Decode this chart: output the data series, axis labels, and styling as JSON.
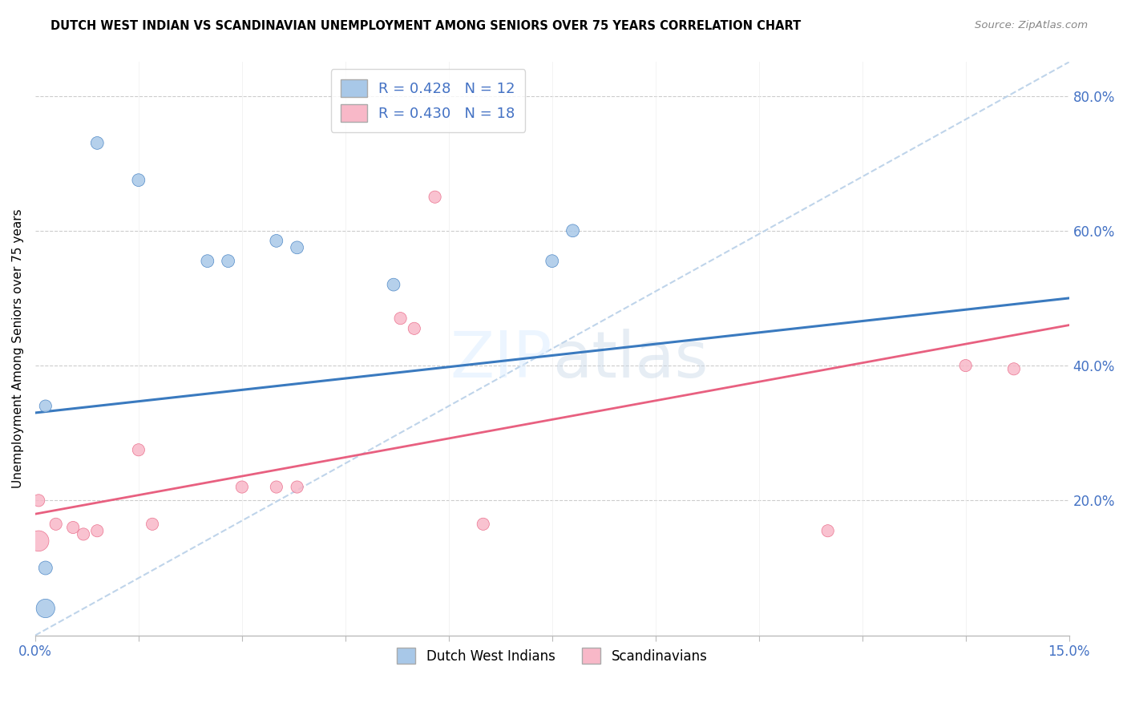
{
  "title": "DUTCH WEST INDIAN VS SCANDINAVIAN UNEMPLOYMENT AMONG SENIORS OVER 75 YEARS CORRELATION CHART",
  "source": "Source: ZipAtlas.com",
  "ylabel": "Unemployment Among Seniors over 75 years",
  "xlim": [
    0.0,
    15.0
  ],
  "ylim": [
    0.0,
    85.0
  ],
  "yticks_right": [
    20.0,
    40.0,
    60.0,
    80.0
  ],
  "legend_label1": "Dutch West Indians",
  "legend_label2": "Scandinavians",
  "R1": 0.428,
  "N1": 12,
  "R2": 0.43,
  "N2": 18,
  "color_blue": "#a8c8e8",
  "color_blue_line": "#3a7abf",
  "color_pink": "#f8b8c8",
  "color_pink_line": "#e86080",
  "color_diag": "#b8d0e8",
  "blue_x": [
    0.15,
    0.15,
    0.9,
    1.5,
    2.5,
    2.8,
    3.5,
    3.8,
    5.2,
    7.5,
    7.8,
    0.15
  ],
  "blue_y": [
    10.0,
    34.0,
    73.0,
    67.5,
    55.5,
    55.5,
    58.5,
    57.5,
    52.0,
    55.5,
    60.0,
    4.0
  ],
  "blue_sizes": [
    150,
    120,
    130,
    130,
    130,
    130,
    130,
    130,
    130,
    130,
    130,
    280
  ],
  "pink_x": [
    0.05,
    0.3,
    0.55,
    0.7,
    0.9,
    1.5,
    1.7,
    3.0,
    3.5,
    3.8,
    5.3,
    5.5,
    5.8,
    6.5,
    11.5,
    13.5,
    14.2,
    0.05
  ],
  "pink_y": [
    14.0,
    16.5,
    16.0,
    15.0,
    15.5,
    27.5,
    16.5,
    22.0,
    22.0,
    22.0,
    47.0,
    45.5,
    65.0,
    16.5,
    15.5,
    40.0,
    39.5,
    20.0
  ],
  "pink_sizes": [
    340,
    120,
    120,
    120,
    120,
    120,
    120,
    120,
    120,
    120,
    120,
    120,
    120,
    120,
    120,
    120,
    120,
    120
  ],
  "blue_line_x0": 0.0,
  "blue_line_y0": 33.0,
  "blue_line_x1": 15.0,
  "blue_line_y1": 50.0,
  "pink_line_x0": 0.0,
  "pink_line_y0": 18.0,
  "pink_line_x1": 15.0,
  "pink_line_y1": 46.0,
  "diag_x0": 0.0,
  "diag_y0": 0.0,
  "diag_x1": 15.0,
  "diag_y1": 85.0
}
